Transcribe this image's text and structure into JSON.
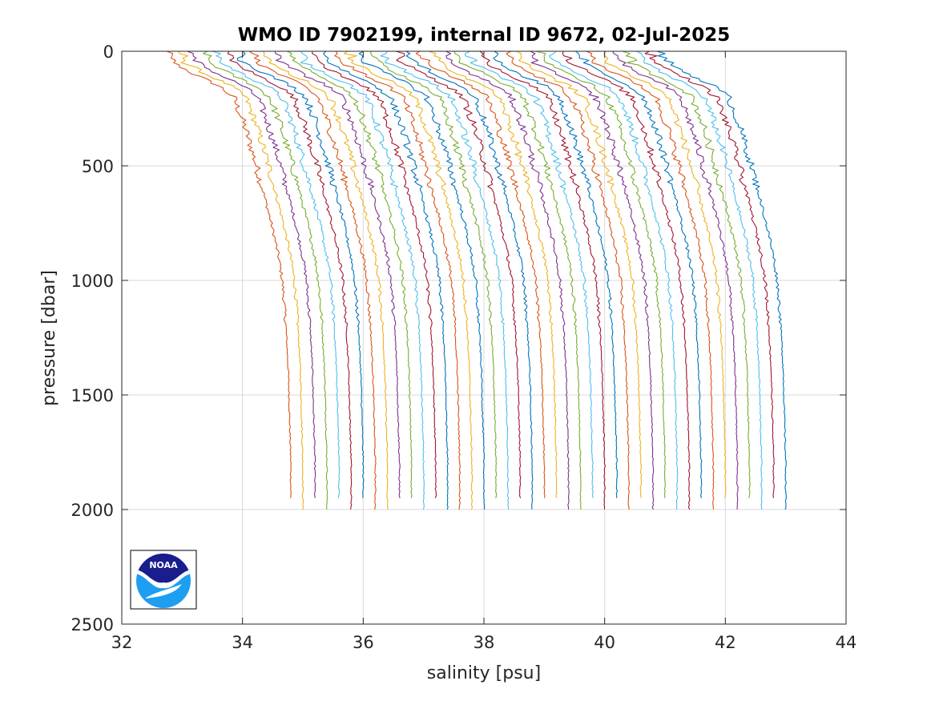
{
  "chart_data": {
    "type": "line",
    "title": "WMO ID 7902199, internal ID 9672, 02-Jul-2025",
    "xlabel": "salinity [psu]",
    "ylabel": "pressure [dbar]",
    "xlim": [
      32,
      44
    ],
    "ylim": [
      0,
      2500
    ],
    "y_reversed": true,
    "grid": true,
    "xticks": [
      32,
      34,
      36,
      38,
      40,
      42,
      44
    ],
    "xtick_labels": [
      "32",
      "34",
      "36",
      "38",
      "40",
      "42",
      "44"
    ],
    "yticks": [
      0,
      500,
      1000,
      1500,
      2000,
      2500
    ],
    "ytick_labels": [
      "0",
      "500",
      "1000",
      "1500",
      "2000",
      "2500"
    ],
    "profile_shape": {
      "pressure": [
        0,
        50,
        100,
        150,
        200,
        300,
        400,
        500,
        600,
        700,
        800,
        900,
        1000,
        1200,
        1400,
        1600,
        1800
      ],
      "offset_from_bottom_salinity": [
        -2.05,
        -1.95,
        -1.6,
        -1.2,
        -0.95,
        -0.8,
        -0.68,
        -0.57,
        -0.47,
        -0.37,
        -0.28,
        -0.2,
        -0.14,
        -0.08,
        -0.04,
        -0.02,
        0
      ]
    },
    "series": [
      {
        "bottom_salinity": 34.8,
        "max_pressure": 1950,
        "color": "#D95319"
      },
      {
        "bottom_salinity": 35.0,
        "max_pressure": 2000,
        "color": "#EDB120"
      },
      {
        "bottom_salinity": 35.2,
        "max_pressure": 1950,
        "color": "#7E2F8E"
      },
      {
        "bottom_salinity": 35.4,
        "max_pressure": 2000,
        "color": "#77AC30"
      },
      {
        "bottom_salinity": 35.6,
        "max_pressure": 1950,
        "color": "#4DBEEE"
      },
      {
        "bottom_salinity": 35.8,
        "max_pressure": 2000,
        "color": "#A2142F"
      },
      {
        "bottom_salinity": 36.0,
        "max_pressure": 1950,
        "color": "#0072BD"
      },
      {
        "bottom_salinity": 36.2,
        "max_pressure": 2000,
        "color": "#D95319"
      },
      {
        "bottom_salinity": 36.4,
        "max_pressure": 2000,
        "color": "#EDB120"
      },
      {
        "bottom_salinity": 36.6,
        "max_pressure": 1950,
        "color": "#7E2F8E"
      },
      {
        "bottom_salinity": 36.8,
        "max_pressure": 1950,
        "color": "#77AC30"
      },
      {
        "bottom_salinity": 37.0,
        "max_pressure": 2000,
        "color": "#4DBEEE"
      },
      {
        "bottom_salinity": 37.2,
        "max_pressure": 1950,
        "color": "#A2142F"
      },
      {
        "bottom_salinity": 37.4,
        "max_pressure": 2000,
        "color": "#0072BD"
      },
      {
        "bottom_salinity": 37.6,
        "max_pressure": 2000,
        "color": "#D95319"
      },
      {
        "bottom_salinity": 37.8,
        "max_pressure": 2000,
        "color": "#EDB120"
      },
      {
        "bottom_salinity": 38.0,
        "max_pressure": 2000,
        "color": "#0072BD"
      },
      {
        "bottom_salinity": 38.2,
        "max_pressure": 1950,
        "color": "#77AC30"
      },
      {
        "bottom_salinity": 38.4,
        "max_pressure": 2000,
        "color": "#4DBEEE"
      },
      {
        "bottom_salinity": 38.6,
        "max_pressure": 1950,
        "color": "#A2142F"
      },
      {
        "bottom_salinity": 38.8,
        "max_pressure": 2000,
        "color": "#0072BD"
      },
      {
        "bottom_salinity": 39.0,
        "max_pressure": 1950,
        "color": "#D95319"
      },
      {
        "bottom_salinity": 39.2,
        "max_pressure": 1950,
        "color": "#EDB120"
      },
      {
        "bottom_salinity": 39.4,
        "max_pressure": 2000,
        "color": "#7E2F8E"
      },
      {
        "bottom_salinity": 39.6,
        "max_pressure": 2000,
        "color": "#77AC30"
      },
      {
        "bottom_salinity": 39.8,
        "max_pressure": 1950,
        "color": "#4DBEEE"
      },
      {
        "bottom_salinity": 40.0,
        "max_pressure": 2000,
        "color": "#A2142F"
      },
      {
        "bottom_salinity": 40.2,
        "max_pressure": 1950,
        "color": "#0072BD"
      },
      {
        "bottom_salinity": 40.4,
        "max_pressure": 2000,
        "color": "#D95319"
      },
      {
        "bottom_salinity": 40.6,
        "max_pressure": 1950,
        "color": "#EDB120"
      },
      {
        "bottom_salinity": 40.8,
        "max_pressure": 2000,
        "color": "#7E2F8E"
      },
      {
        "bottom_salinity": 41.0,
        "max_pressure": 1950,
        "color": "#77AC30"
      },
      {
        "bottom_salinity": 41.2,
        "max_pressure": 2000,
        "color": "#4DBEEE"
      },
      {
        "bottom_salinity": 41.4,
        "max_pressure": 2000,
        "color": "#A2142F"
      },
      {
        "bottom_salinity": 41.6,
        "max_pressure": 1950,
        "color": "#0072BD"
      },
      {
        "bottom_salinity": 41.8,
        "max_pressure": 2000,
        "color": "#D95319"
      },
      {
        "bottom_salinity": 42.0,
        "max_pressure": 1950,
        "color": "#EDB120"
      },
      {
        "bottom_salinity": 42.2,
        "max_pressure": 2000,
        "color": "#7E2F8E"
      },
      {
        "bottom_salinity": 42.4,
        "max_pressure": 1950,
        "color": "#77AC30"
      },
      {
        "bottom_salinity": 42.6,
        "max_pressure": 2000,
        "color": "#4DBEEE"
      },
      {
        "bottom_salinity": 42.8,
        "max_pressure": 1950,
        "color": "#A2142F"
      },
      {
        "bottom_salinity": 43.0,
        "max_pressure": 2000,
        "color": "#0072BD"
      }
    ]
  },
  "logo": {
    "text": "NOAA",
    "colors": {
      "navy": "#1a1e8c",
      "sky": "#1e9ef0",
      "white": "#ffffff"
    }
  }
}
